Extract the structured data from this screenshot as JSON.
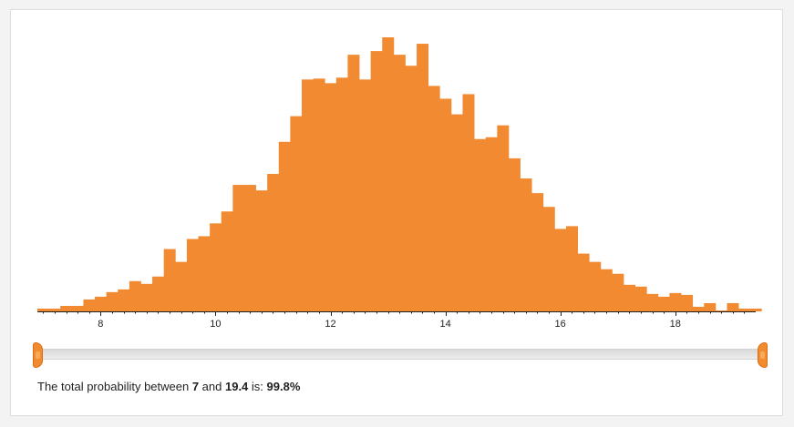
{
  "colors": {
    "bar": "#f28a32",
    "axis": "#222222",
    "handle": "#f28a2f",
    "panel_bg": "#ffffff",
    "page_bg": "#f3f3f3"
  },
  "summary": {
    "prefix": "The total probability between ",
    "low": "7",
    "middle": " and ",
    "high": "19.4",
    "suffix": " is: ",
    "probability": "99.8%"
  },
  "slider": {
    "low": 7,
    "high": 19.4
  },
  "chart_data": {
    "type": "bar",
    "subtype": "histogram",
    "title": "",
    "xlabel": "",
    "ylabel": "",
    "xlim": [
      6.9,
      19.4
    ],
    "bin_width": 0.2,
    "ticks": [
      8,
      10,
      12,
      14,
      16,
      18
    ],
    "tick_labels": [
      "8",
      "10",
      "12",
      "14",
      "16",
      "18"
    ],
    "x": [
      6.9,
      7.1,
      7.3,
      7.5,
      7.7,
      7.9,
      8.1,
      8.3,
      8.5,
      8.7,
      8.9,
      9.1,
      9.3,
      9.5,
      9.7,
      9.9,
      10.1,
      10.3,
      10.5,
      10.7,
      10.9,
      11.1,
      11.3,
      11.5,
      11.7,
      11.9,
      12.1,
      12.3,
      12.5,
      12.7,
      12.9,
      13.1,
      13.3,
      13.5,
      13.7,
      13.9,
      14.1,
      14.3,
      14.5,
      14.7,
      14.9,
      15.1,
      15.3,
      15.5,
      15.7,
      15.9,
      16.1,
      16.3,
      16.5,
      16.7,
      16.9,
      17.1,
      17.3,
      17.5,
      17.7,
      17.9,
      18.1,
      18.3,
      18.5,
      18.7,
      18.9,
      19.1,
      19.3
    ],
    "values": [
      3,
      3,
      6,
      6,
      13,
      16,
      21,
      24,
      33,
      30,
      38,
      68,
      54,
      79,
      82,
      96,
      109,
      138,
      138,
      132,
      150,
      185,
      213,
      253,
      254,
      249,
      255,
      280,
      253,
      284,
      299,
      280,
      268,
      292,
      246,
      232,
      215,
      237,
      188,
      190,
      203,
      167,
      145,
      129,
      114,
      90,
      93,
      63,
      54,
      46,
      41,
      29,
      27,
      19,
      16,
      20,
      18,
      5,
      9,
      1,
      9,
      3,
      3
    ],
    "ylim": [
      0,
      300
    ],
    "grid": false,
    "legend": "none"
  }
}
